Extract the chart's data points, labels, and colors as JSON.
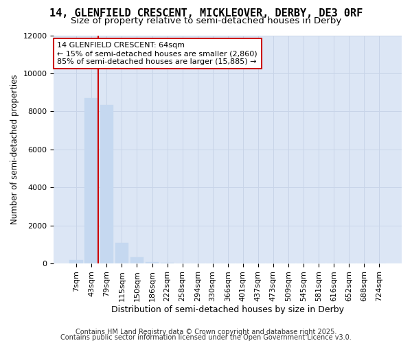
{
  "title": "14, GLENFIELD CRESCENT, MICKLEOVER, DERBY, DE3 0RF",
  "subtitle": "Size of property relative to semi-detached houses in Derby",
  "xlabel": "Distribution of semi-detached houses by size in Derby",
  "ylabel": "Number of semi-detached properties",
  "categories": [
    "7sqm",
    "43sqm",
    "79sqm",
    "115sqm",
    "150sqm",
    "186sqm",
    "222sqm",
    "258sqm",
    "294sqm",
    "330sqm",
    "366sqm",
    "401sqm",
    "437sqm",
    "473sqm",
    "509sqm",
    "545sqm",
    "581sqm",
    "616sqm",
    "652sqm",
    "688sqm",
    "724sqm"
  ],
  "values": [
    200,
    8700,
    8350,
    1100,
    340,
    80,
    30,
    0,
    0,
    0,
    0,
    0,
    0,
    0,
    0,
    0,
    0,
    0,
    0,
    0,
    0
  ],
  "bar_color": "#c5d8f0",
  "bar_edge_color": "#c5d8f0",
  "annotation_text": "14 GLENFIELD CRESCENT: 64sqm\n← 15% of semi-detached houses are smaller (2,860)\n85% of semi-detached houses are larger (15,885) →",
  "annotation_box_color": "#ffffff",
  "annotation_box_edge_color": "#cc0000",
  "vline_color": "#cc0000",
  "grid_color": "#c8d4e8",
  "plot_bg_color": "#dce6f5",
  "fig_bg_color": "#ffffff",
  "ylim": [
    0,
    12000
  ],
  "yticks": [
    0,
    2000,
    4000,
    6000,
    8000,
    10000,
    12000
  ],
  "footer_line1": "Contains HM Land Registry data © Crown copyright and database right 2025.",
  "footer_line2": "Contains public sector information licensed under the Open Government Licence v3.0.",
  "title_fontsize": 11,
  "subtitle_fontsize": 9.5,
  "xlabel_fontsize": 9,
  "ylabel_fontsize": 8.5,
  "tick_fontsize": 8,
  "annotation_fontsize": 8,
  "footer_fontsize": 7
}
